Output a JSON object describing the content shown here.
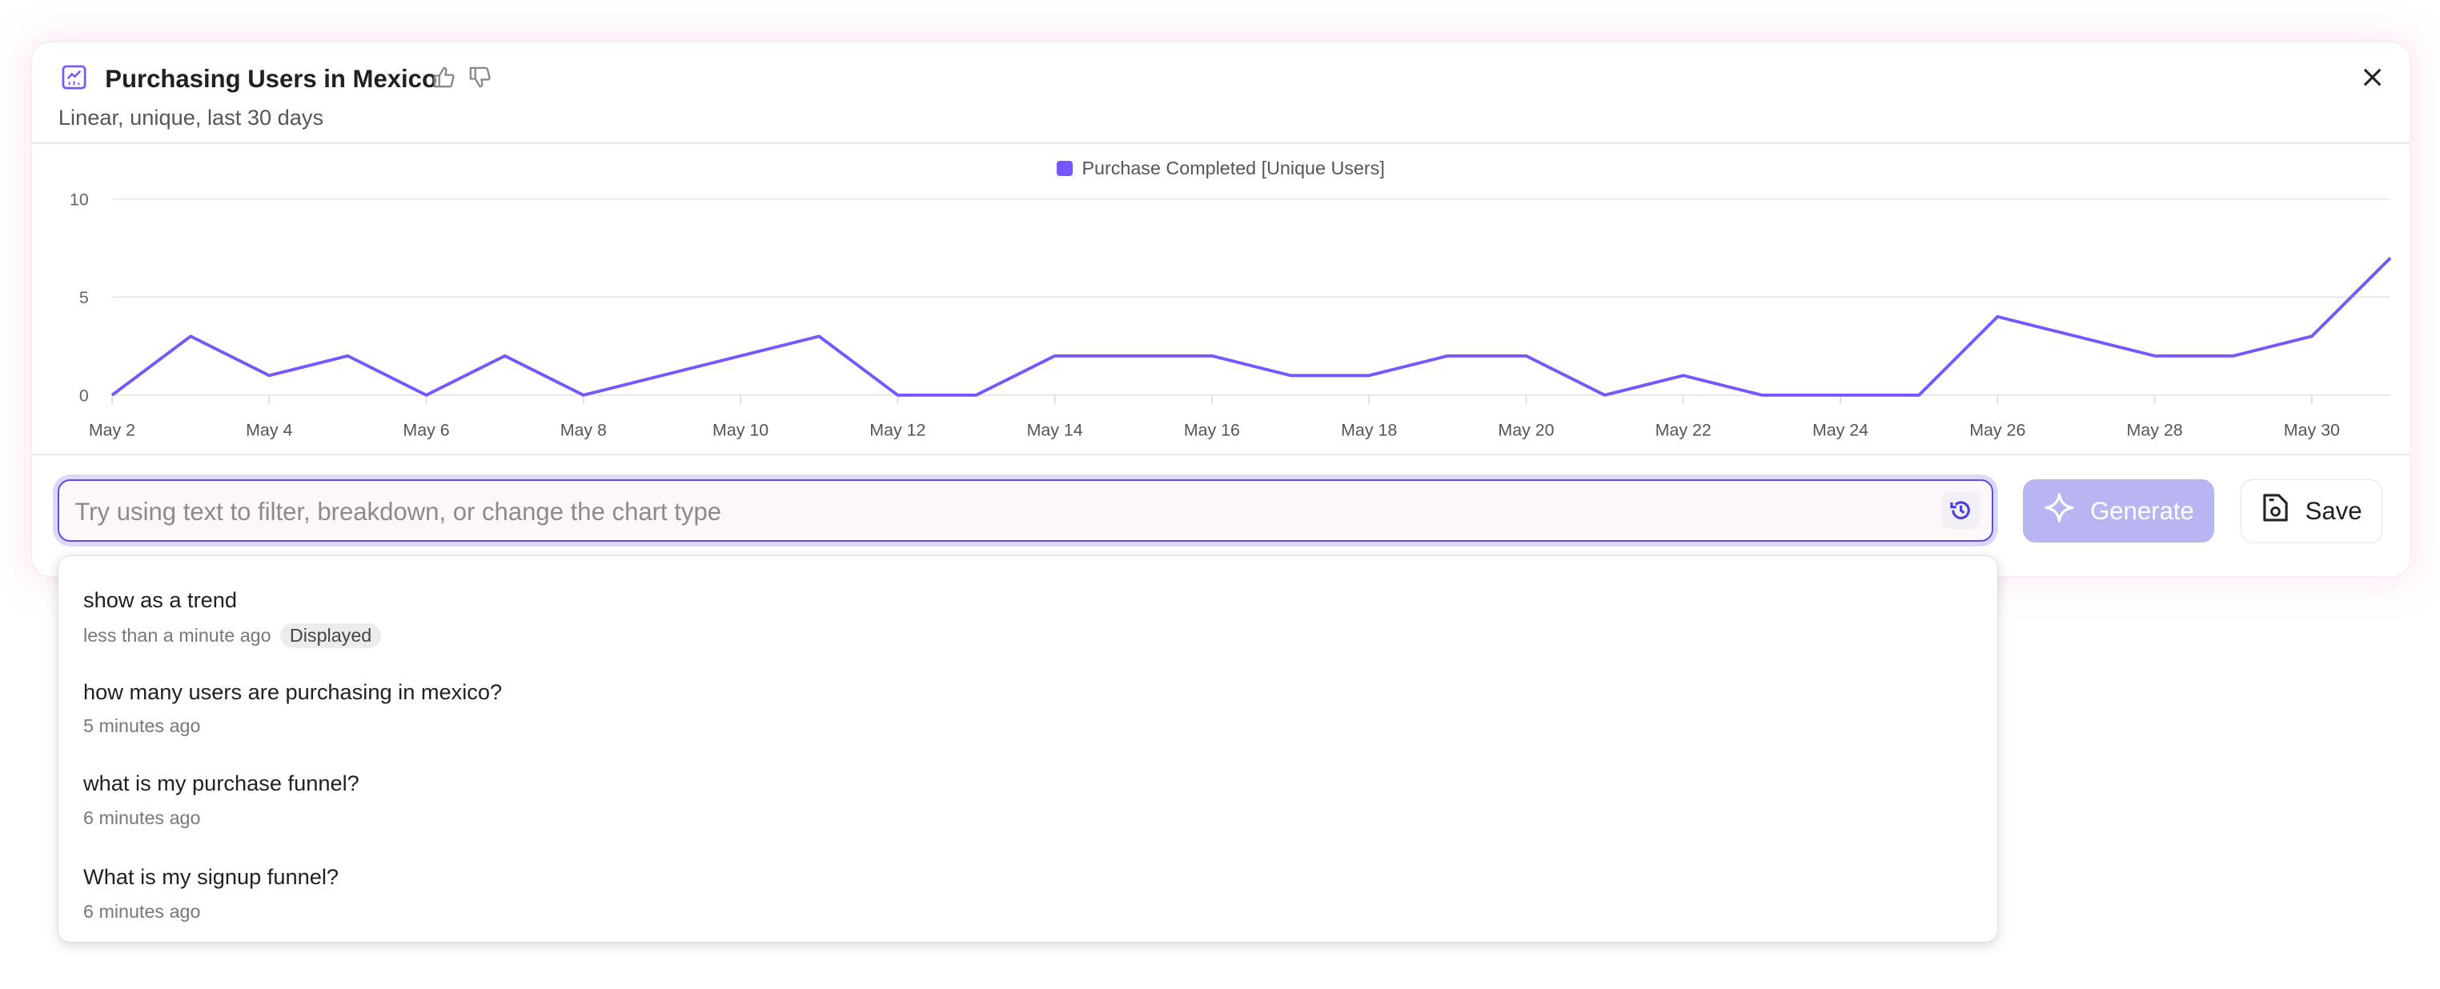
{
  "header": {
    "title": "Purchasing Users in Mexico",
    "subtitle": "Linear, unique, last 30 days",
    "icon": "line-chart-icon",
    "accent": "#7856ff"
  },
  "chart_data": {
    "type": "line",
    "legend_position": "top-center",
    "grid": true,
    "ylim": [
      0,
      10
    ],
    "yticks": [
      0,
      5,
      10
    ],
    "x": [
      "May 2",
      "May 3",
      "May 4",
      "May 5",
      "May 6",
      "May 7",
      "May 8",
      "May 9",
      "May 10",
      "May 11",
      "May 12",
      "May 13",
      "May 14",
      "May 15",
      "May 16",
      "May 17",
      "May 18",
      "May 19",
      "May 20",
      "May 21",
      "May 22",
      "May 23",
      "May 24",
      "May 25",
      "May 26",
      "May 27",
      "May 28",
      "May 29",
      "May 30",
      "May 31"
    ],
    "xtick_labels": [
      "May 2",
      "May 4",
      "May 6",
      "May 8",
      "May 10",
      "May 12",
      "May 14",
      "May 16",
      "May 18",
      "May 20",
      "May 22",
      "May 24",
      "May 26",
      "May 28",
      "May 30"
    ],
    "series": [
      {
        "name": "Purchase Completed [Unique Users]",
        "color": "#7856ff",
        "values": [
          0,
          3,
          1,
          2,
          0,
          2,
          0,
          1,
          2,
          3,
          0,
          0,
          2,
          2,
          2,
          1,
          1,
          2,
          2,
          0,
          1,
          0,
          0,
          0,
          4,
          3,
          2,
          2,
          3,
          7
        ]
      }
    ]
  },
  "prompt": {
    "placeholder": "Try using text to filter, breakdown, or change the chart type",
    "value": ""
  },
  "buttons": {
    "generate": "Generate",
    "save": "Save"
  },
  "history": [
    {
      "query": "show as a trend",
      "time": "less than a minute ago",
      "badge": "Displayed"
    },
    {
      "query": "how many users are purchasing in mexico?",
      "time": "5 minutes ago"
    },
    {
      "query": "what is my purchase funnel?",
      "time": "6 minutes ago"
    },
    {
      "query": "What is my signup funnel?",
      "time": "6 minutes ago"
    }
  ]
}
